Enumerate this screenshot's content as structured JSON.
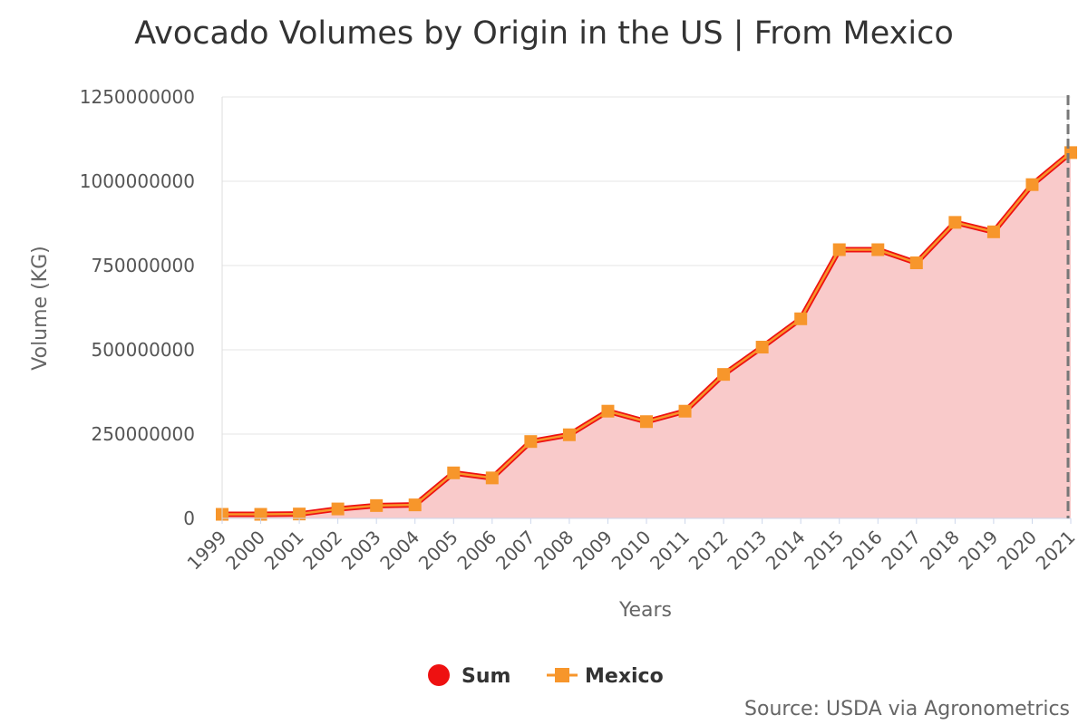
{
  "chart_data": {
    "type": "line",
    "title": "Avocado Volumes by Origin in the US | From Mexico",
    "xlabel": "Years",
    "ylabel": "Volume (KG)",
    "ylim": [
      0,
      1250000000
    ],
    "yticks": [
      0,
      250000000,
      500000000,
      750000000,
      1000000000,
      1250000000
    ],
    "ytick_labels": [
      "0",
      "250000000",
      "500000000",
      "750000000",
      "1000000000",
      "1250000000"
    ],
    "categories": [
      "1999",
      "2000",
      "2001",
      "2002",
      "2003",
      "2004",
      "2005",
      "2006",
      "2007",
      "2008",
      "2009",
      "2010",
      "2011",
      "2012",
      "2013",
      "2014",
      "2015",
      "2016",
      "2017",
      "2018",
      "2019",
      "2020",
      "2021"
    ],
    "series": [
      {
        "name": "Sum",
        "color": "#ee1111",
        "fill": "#f9caca",
        "marker": "circle",
        "values": [
          12000000,
          12000000,
          13000000,
          28000000,
          38000000,
          40000000,
          135000000,
          120000000,
          228000000,
          248000000,
          318000000,
          287000000,
          318000000,
          427000000,
          508000000,
          592000000,
          797000000,
          797000000,
          758000000,
          878000000,
          850000000,
          990000000,
          1085000000
        ]
      },
      {
        "name": "Mexico",
        "color": "#f7962b",
        "marker": "square",
        "values": [
          12000000,
          12000000,
          13000000,
          28000000,
          38000000,
          40000000,
          135000000,
          120000000,
          228000000,
          248000000,
          318000000,
          287000000,
          318000000,
          427000000,
          508000000,
          592000000,
          797000000,
          797000000,
          758000000,
          878000000,
          850000000,
          990000000,
          1085000000
        ]
      }
    ],
    "legend": {
      "position": "bottom-center",
      "items": [
        "Sum",
        "Mexico"
      ]
    },
    "grid": true,
    "credits": "Source: USDA via Agronometrics"
  }
}
